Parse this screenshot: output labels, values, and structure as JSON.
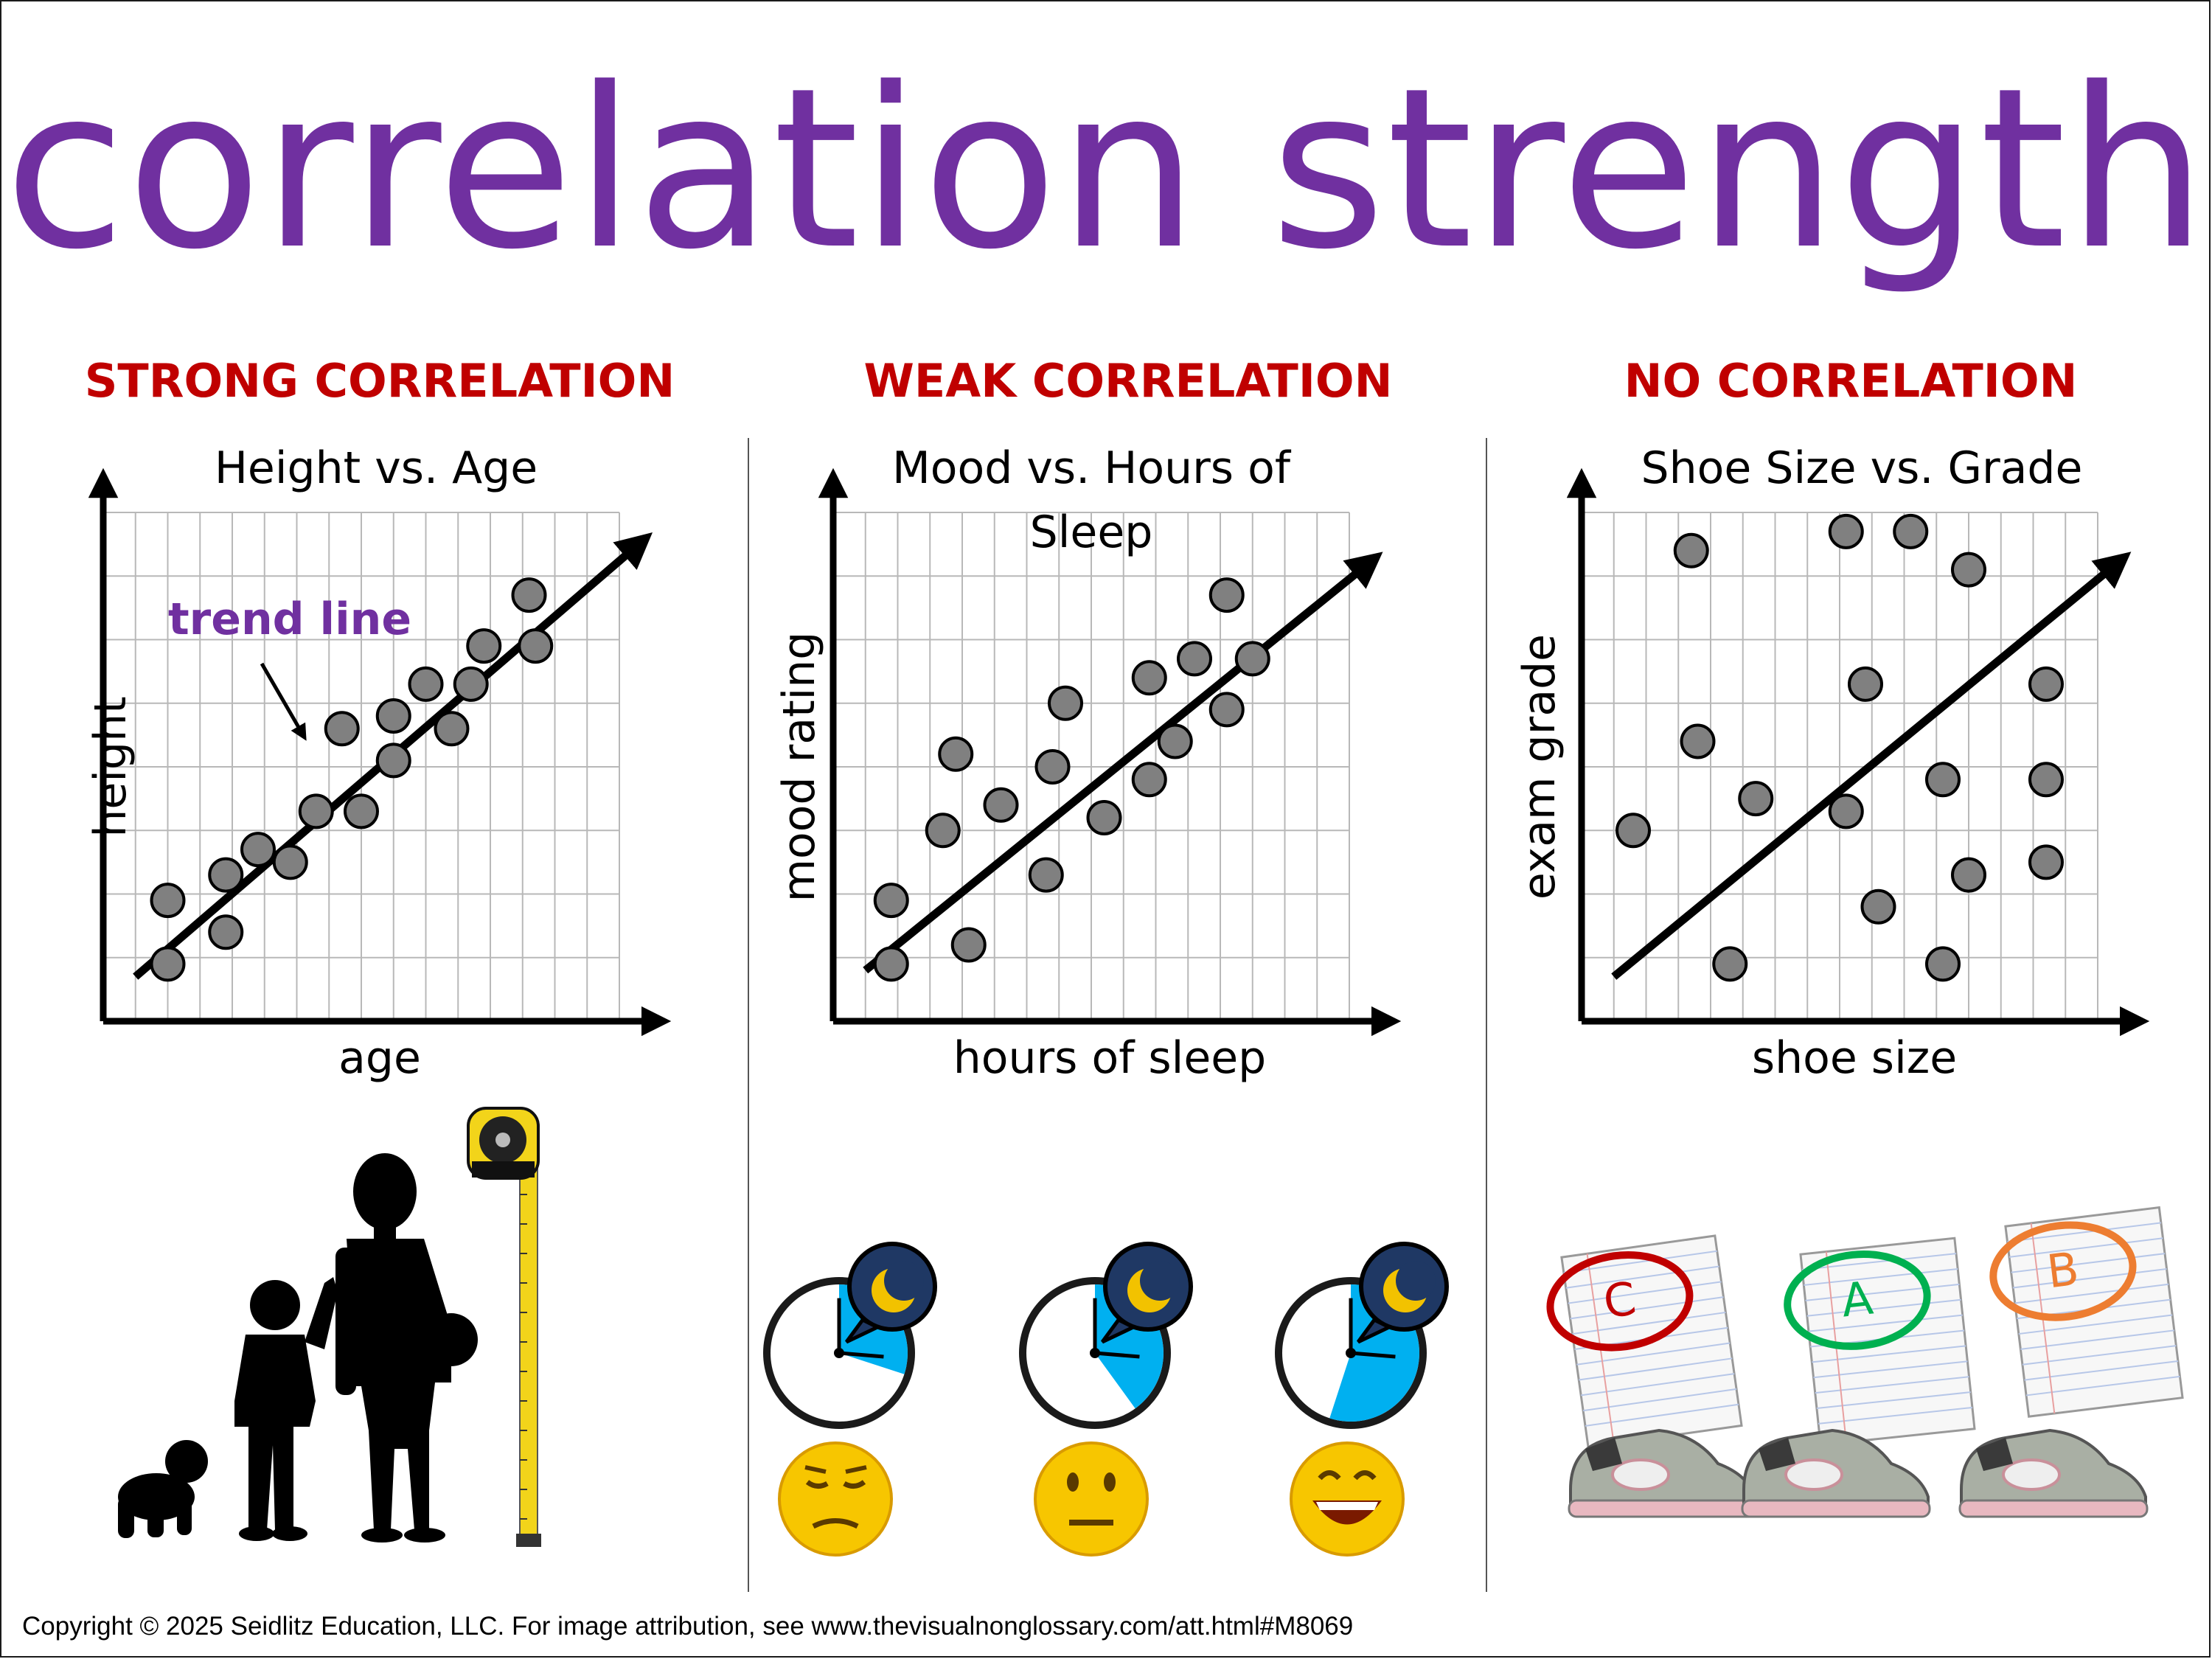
{
  "title": "correlation strength",
  "copyright": "Copyright © 2025 Seidlitz Education, LLC.  For image attribution, see www.thevisualnonglossary.com/att.html#M8069",
  "colors": {
    "title": "#7030a0",
    "heading": "#c00000",
    "annotation": "#7030a0",
    "point": "#808080",
    "clock": "#00b0f0",
    "moon_bubble": "#1f3864"
  },
  "illustrations": {
    "strong": "baby-child-adult-silhouettes-with-tape-measure",
    "weak": [
      "clock-sleep-icon",
      "sad-face",
      "clock-sleep-icon",
      "neutral-face",
      "clock-sleep-icon",
      "happy-face"
    ],
    "none": [
      "graded-paper-c",
      "graded-paper-a",
      "graded-paper-b",
      "sneaker",
      "sneaker",
      "sneaker"
    ]
  },
  "grades": [
    "C",
    "A",
    "B"
  ],
  "grade_colors": [
    "#c00000",
    "#00b050",
    "#ed7d31"
  ],
  "sleep_fractions": [
    0.3,
    0.4,
    0.55
  ],
  "chart_data": [
    {
      "type": "scatter",
      "heading": "STRONG CORRELATION",
      "title": "Height vs. Age",
      "xlabel": "age",
      "ylabel": "height",
      "annotation": "trend line",
      "xlim": [
        0,
        8
      ],
      "ylim": [
        0,
        8
      ],
      "grid": true,
      "trend_line": {
        "from": [
          0.5,
          0.7
        ],
        "to": [
          8.3,
          7.5
        ]
      },
      "points": [
        [
          1,
          0.9
        ],
        [
          1,
          1.9
        ],
        [
          1.9,
          1.4
        ],
        [
          1.9,
          2.3
        ],
        [
          2.4,
          2.7
        ],
        [
          2.9,
          2.5
        ],
        [
          3.3,
          3.3
        ],
        [
          3.7,
          4.6
        ],
        [
          4,
          3.3
        ],
        [
          4.5,
          4.1
        ],
        [
          4.5,
          4.8
        ],
        [
          5,
          5.3
        ],
        [
          5.4,
          4.6
        ],
        [
          5.7,
          5.3
        ],
        [
          5.9,
          5.9
        ],
        [
          6.6,
          6.7
        ],
        [
          6.7,
          5.9
        ]
      ]
    },
    {
      "type": "scatter",
      "heading": "WEAK CORRELATION",
      "title": "Mood vs. Hours of Sleep",
      "xlabel": "hours of sleep",
      "ylabel": "mood rating",
      "xlim": [
        0,
        8
      ],
      "ylim": [
        0,
        8
      ],
      "grid": true,
      "trend_line": {
        "from": [
          0.5,
          0.8
        ],
        "to": [
          8.3,
          7.2
        ]
      },
      "points": [
        [
          0.9,
          0.9
        ],
        [
          0.9,
          1.9
        ],
        [
          1.7,
          3
        ],
        [
          1.9,
          4.2
        ],
        [
          2.1,
          1.2
        ],
        [
          2.6,
          3.4
        ],
        [
          3.3,
          2.3
        ],
        [
          3.4,
          4
        ],
        [
          3.6,
          5
        ],
        [
          4.2,
          3.2
        ],
        [
          4.9,
          3.8
        ],
        [
          4.9,
          5.4
        ],
        [
          5.3,
          4.4
        ],
        [
          5.6,
          5.7
        ],
        [
          6.1,
          4.9
        ],
        [
          6.1,
          6.7
        ],
        [
          6.5,
          5.7
        ]
      ]
    },
    {
      "type": "scatter",
      "heading": "NO CORRELATION",
      "title": "Shoe Size vs. Grade",
      "xlabel": "shoe size",
      "ylabel": "exam grade",
      "xlim": [
        0,
        8
      ],
      "ylim": [
        0,
        8
      ],
      "grid": true,
      "trend_line": {
        "from": [
          0.5,
          0.7
        ],
        "to": [
          8.3,
          7.2
        ]
      },
      "points": [
        [
          0.8,
          3
        ],
        [
          1.7,
          7.4
        ],
        [
          1.8,
          4.4
        ],
        [
          2.3,
          0.9
        ],
        [
          2.7,
          3.5
        ],
        [
          4.1,
          3.3
        ],
        [
          4.1,
          7.7
        ],
        [
          4.4,
          5.3
        ],
        [
          4.6,
          1.8
        ],
        [
          5.1,
          7.7
        ],
        [
          5.6,
          0.9
        ],
        [
          5.6,
          3.8
        ],
        [
          6,
          2.3
        ],
        [
          6,
          7.1
        ],
        [
          7.2,
          2.5
        ],
        [
          7.2,
          3.8
        ],
        [
          7.2,
          5.3
        ]
      ]
    }
  ]
}
